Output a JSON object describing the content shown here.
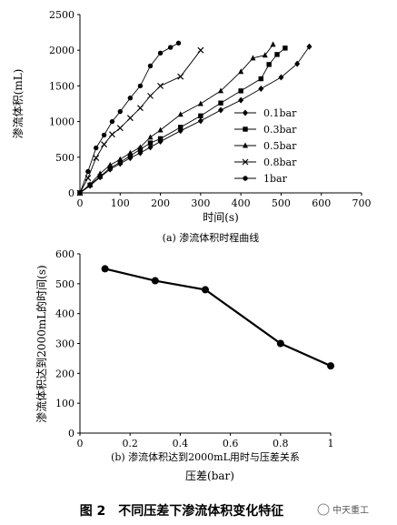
{
  "chart_data": [
    {
      "type": "line",
      "caption": "(a) 渗流体积时程曲线",
      "xlabel": "时间(s)",
      "ylabel": "渗流体积(mL)",
      "xlim": [
        0,
        700
      ],
      "ylim": [
        0,
        2500
      ],
      "xticks": [
        "0",
        "100",
        "200",
        "300",
        "400",
        "500",
        "600",
        "700"
      ],
      "yticks": [
        "0",
        "500",
        "1000",
        "1500",
        "2000",
        "2500"
      ],
      "grid": false,
      "legend_position": "right",
      "series": [
        {
          "name": "0.1bar",
          "marker": "diamond",
          "x": [
            0,
            25,
            50,
            75,
            100,
            125,
            150,
            175,
            200,
            250,
            300,
            350,
            400,
            450,
            500,
            540,
            570
          ],
          "y": [
            0,
            100,
            220,
            330,
            410,
            490,
            560,
            640,
            720,
            870,
            1010,
            1160,
            1300,
            1460,
            1620,
            1810,
            2050
          ]
        },
        {
          "name": "0.3bar",
          "marker": "square",
          "x": [
            0,
            25,
            50,
            75,
            100,
            125,
            150,
            175,
            200,
            250,
            300,
            350,
            400,
            450,
            470,
            490,
            510
          ],
          "y": [
            0,
            110,
            230,
            350,
            430,
            520,
            610,
            700,
            760,
            920,
            1080,
            1260,
            1430,
            1600,
            1800,
            1940,
            2030
          ]
        },
        {
          "name": "0.5bar",
          "marker": "triangle",
          "x": [
            0,
            25,
            50,
            75,
            100,
            125,
            150,
            175,
            200,
            250,
            300,
            350,
            400,
            430,
            460,
            480
          ],
          "y": [
            0,
            120,
            270,
            390,
            470,
            560,
            640,
            780,
            880,
            1100,
            1250,
            1430,
            1700,
            1890,
            1930,
            2080
          ]
        },
        {
          "name": "0.8bar",
          "marker": "x",
          "x": [
            0,
            20,
            40,
            60,
            80,
            100,
            125,
            150,
            175,
            200,
            250,
            300
          ],
          "y": [
            0,
            210,
            490,
            680,
            820,
            910,
            1050,
            1190,
            1360,
            1500,
            1630,
            2000
          ]
        },
        {
          "name": "1bar",
          "marker": "circle",
          "x": [
            0,
            20,
            40,
            60,
            80,
            100,
            125,
            150,
            175,
            200,
            225,
            245
          ],
          "y": [
            0,
            300,
            630,
            810,
            1000,
            1140,
            1330,
            1500,
            1780,
            1960,
            2040,
            2100
          ]
        }
      ]
    },
    {
      "type": "line",
      "caption": "(b) 渗流体积达到2000mL用时与压差关系",
      "xlabel": "压差(bar)",
      "ylabel": "渗流体积达到2000mL的时间(s)",
      "xlim": [
        0,
        1
      ],
      "ylim": [
        0,
        600
      ],
      "xticks": [
        "0",
        "0.2",
        "0.4",
        "0.6",
        "0.8",
        "1"
      ],
      "yticks": [
        "0",
        "100",
        "200",
        "300",
        "400",
        "500",
        "600"
      ],
      "grid": false,
      "series": [
        {
          "marker": "circle",
          "x": [
            0.1,
            0.3,
            0.5,
            0.8,
            1.0
          ],
          "y": [
            550,
            510,
            480,
            300,
            225
          ]
        }
      ]
    }
  ],
  "figure_caption": "图 2　不同压差下渗流体积变化特征",
  "watermark": "中天重工"
}
